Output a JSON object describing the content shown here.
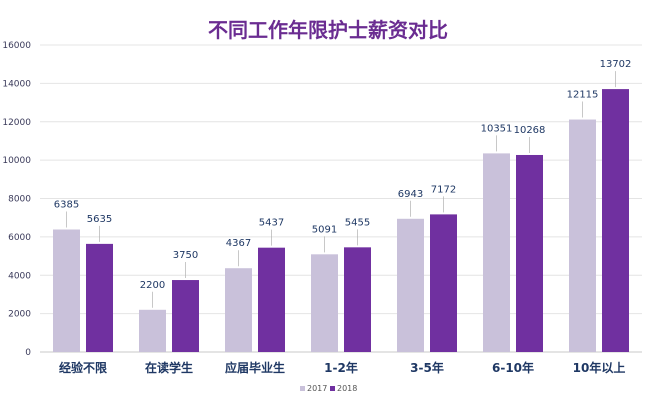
{
  "chart_data": {
    "type": "bar",
    "title": "不同工作年限护士薪资对比",
    "xlabel": "",
    "ylabel": "",
    "ylim": [
      0,
      16000
    ],
    "yticks": [
      0,
      2000,
      4000,
      6000,
      8000,
      10000,
      12000,
      14000,
      16000
    ],
    "grid": true,
    "legend_position": "bottom",
    "categories": [
      "经验不限",
      "在读学生",
      "应届毕业生",
      "1-2年",
      "3-5年",
      "6-10年",
      "10年以上"
    ],
    "series": [
      {
        "name": "2017",
        "color": "#c9c1da",
        "values": [
          6385,
          2200,
          4367,
          5091,
          6943,
          10351,
          12115
        ]
      },
      {
        "name": "2018",
        "color": "#7030a0",
        "values": [
          5635,
          3750,
          5437,
          5455,
          7172,
          10268,
          13702
        ]
      }
    ]
  }
}
